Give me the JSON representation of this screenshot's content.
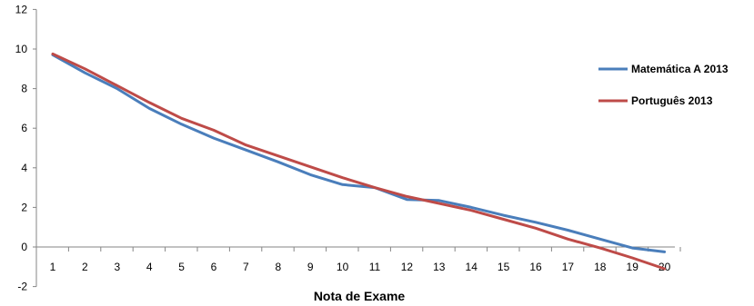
{
  "chart_data": {
    "type": "line",
    "title": "",
    "xlabel": "Nota de Exame",
    "ylabel": "",
    "x": [
      1,
      2,
      3,
      4,
      5,
      6,
      7,
      8,
      9,
      10,
      11,
      12,
      13,
      14,
      15,
      16,
      17,
      18,
      19,
      20
    ],
    "x_tick_labels": [
      "1",
      "2",
      "3",
      "4",
      "5",
      "6",
      "7",
      "8",
      "9",
      "10",
      "11",
      "12",
      "13",
      "14",
      "15",
      "16",
      "17",
      "18",
      "19",
      "20"
    ],
    "y_tick_labels": [
      "-2",
      "0",
      "2",
      "4",
      "6",
      "8",
      "10",
      "12"
    ],
    "ylim": [
      -2,
      12
    ],
    "grid": false,
    "legend_position": "right",
    "series": [
      {
        "name": "Matemática A 2013",
        "color": "#4a7ebb",
        "values": [
          9.7,
          8.8,
          8.0,
          7.0,
          6.2,
          5.5,
          4.9,
          4.3,
          3.65,
          3.15,
          3.0,
          2.4,
          2.35,
          2.0,
          1.6,
          1.25,
          0.85,
          0.4,
          -0.05,
          -0.25
        ]
      },
      {
        "name": "Português 2013",
        "color": "#be4b48",
        "values": [
          9.75,
          9.0,
          8.15,
          7.3,
          6.5,
          5.9,
          5.15,
          4.6,
          4.05,
          3.5,
          3.0,
          2.55,
          2.2,
          1.85,
          1.4,
          0.95,
          0.4,
          -0.05,
          -0.55,
          -1.1
        ]
      }
    ]
  }
}
